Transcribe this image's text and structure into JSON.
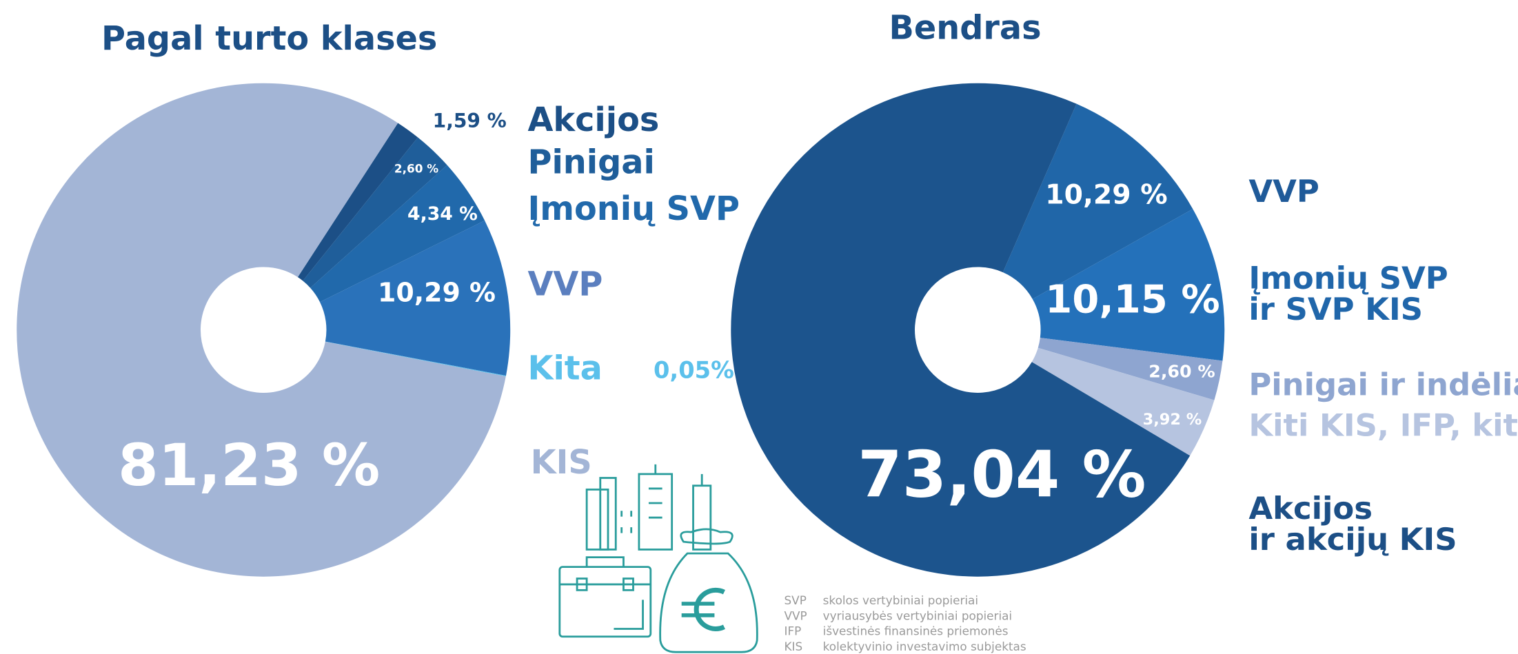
{
  "chart_data": [
    {
      "type": "pie",
      "title": "Pagal turto klases",
      "categories": [
        "Akcijos",
        "Pinigai",
        "Įmonių SVP",
        "VVP",
        "Kita",
        "KIS"
      ],
      "values": [
        1.59,
        2.6,
        4.34,
        10.29,
        0.05,
        81.23
      ],
      "value_labels": [
        "1,59 %",
        "2,60 %",
        "4,34 %",
        "10,29 %",
        "0,05%",
        "81,23 %"
      ],
      "colors": [
        "#1c4f86",
        "#1f5e9a",
        "#2169ab",
        "#2a72ba",
        "#5bc0eb",
        "#a3b5d6"
      ]
    },
    {
      "type": "pie",
      "title": "Bendras",
      "categories": [
        "VVP",
        "Įmonių SVP ir SVP KIS",
        "Pinigai ir indėliai",
        "Kiti KIS, IFP, kita",
        "Akcijos ir akcijų KIS"
      ],
      "values": [
        10.29,
        10.15,
        2.6,
        3.92,
        73.04
      ],
      "value_labels": [
        "10,29 %",
        "10,15 %",
        "2,60 %",
        "3,92 %",
        "73,04 %"
      ],
      "colors": [
        "#2066a8",
        "#2471ba",
        "#8ea5d0",
        "#b6c4e0",
        "#1c548d"
      ]
    }
  ],
  "glossary": [
    {
      "abbr": "SVP",
      "text": "skolos vertybiniai popieriai"
    },
    {
      "abbr": "VVP",
      "text": "vyriausybės vertybiniai popieriai"
    },
    {
      "abbr": "IFP",
      "text": "išvestinės finansinės priemonės"
    },
    {
      "abbr": "KIS",
      "text": "kolektyvinio investavimo subjektas"
    }
  ]
}
